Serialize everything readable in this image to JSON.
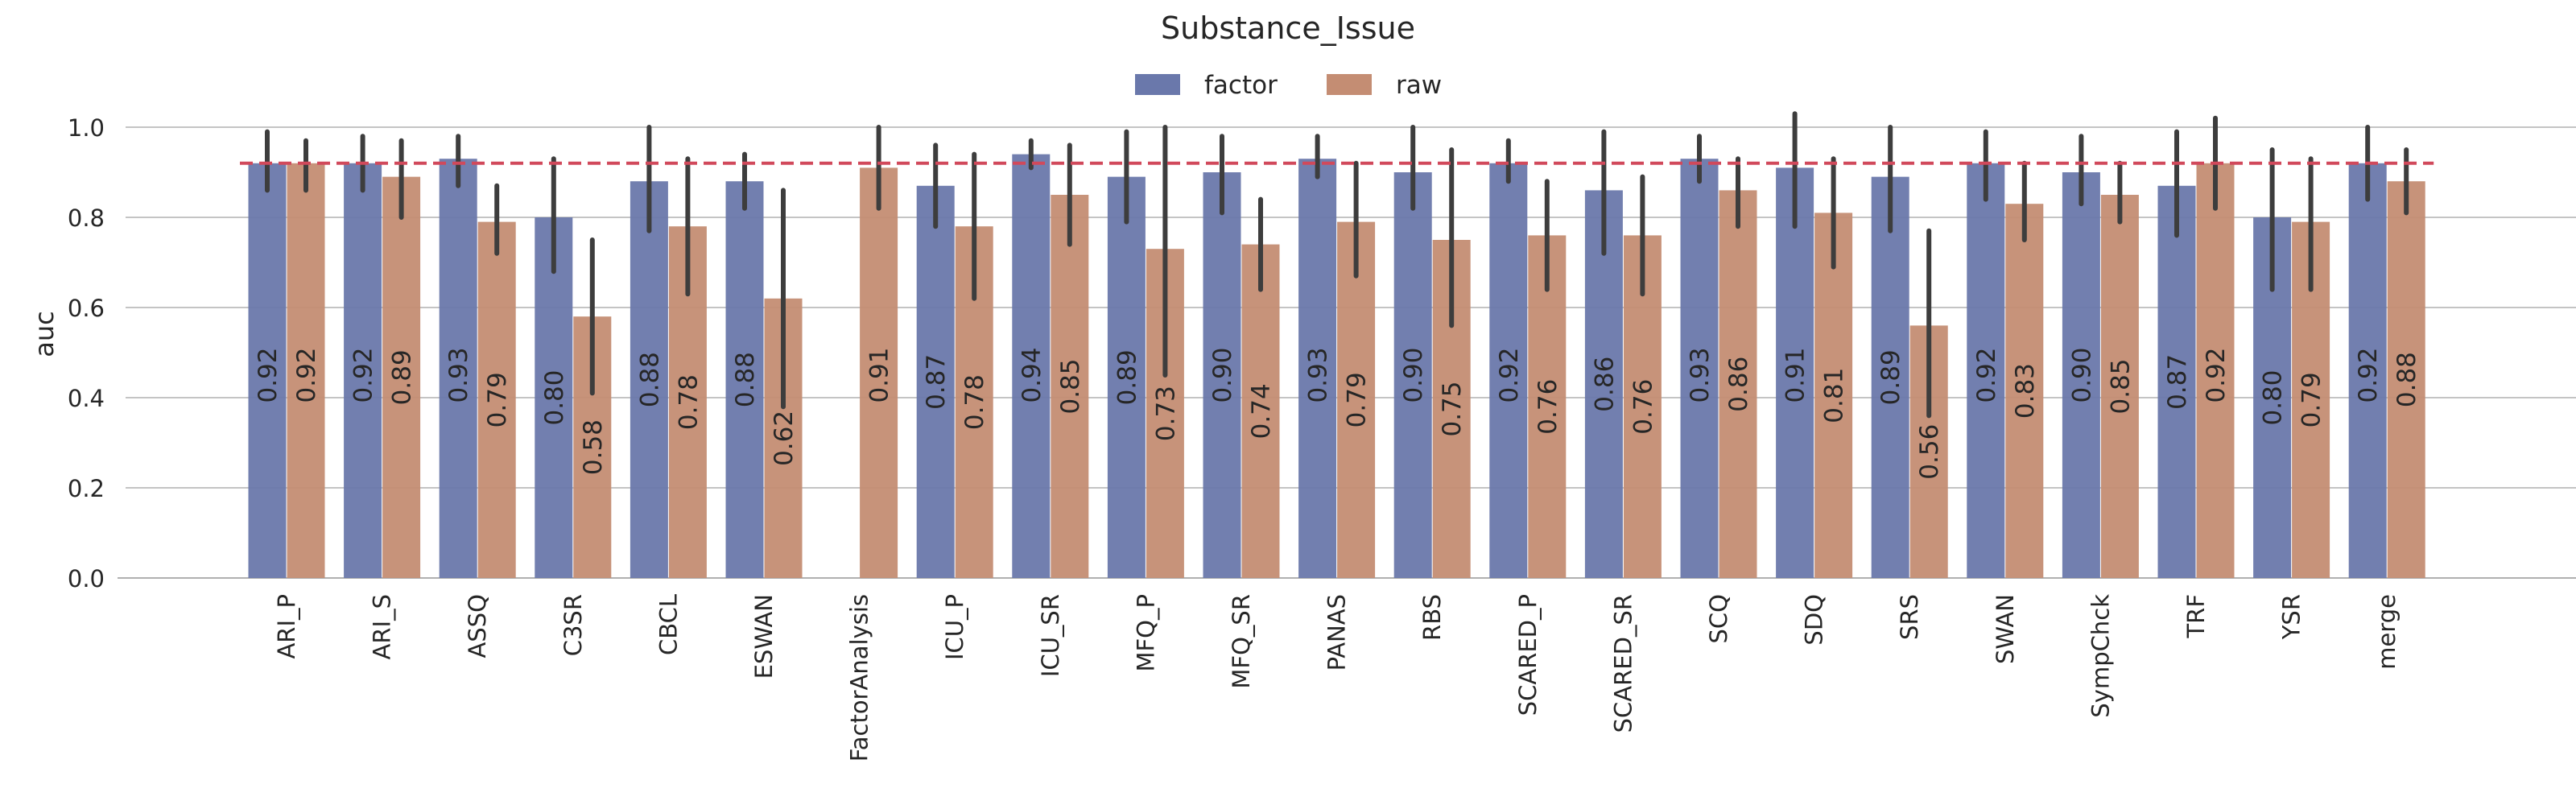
{
  "chart_data": {
    "type": "bar",
    "title": "Substance_Issue",
    "xlabel": "",
    "ylabel": "auc",
    "ylim": [
      0,
      1.1
    ],
    "yticks": [
      0.0,
      0.2,
      0.4,
      0.6,
      0.8,
      1.0
    ],
    "ytick_labels": [
      "0.0",
      "0.2",
      "0.4",
      "0.6",
      "0.8",
      "1.0"
    ],
    "grid": true,
    "legend_position": "top-center",
    "reference_line": {
      "value": 0.92,
      "color": "#d1495b",
      "style": "dashed"
    },
    "categories": [
      "ARI_P",
      "ARI_S",
      "ASSQ",
      "C3SR",
      "CBCL",
      "ESWAN",
      "FactorAnalysis",
      "ICU_P",
      "ICU_SR",
      "MFQ_P",
      "MFQ_SR",
      "PANAS",
      "RBS",
      "SCARED_P",
      "SCARED_SR",
      "SCQ",
      "SDQ",
      "SRS",
      "SWAN",
      "SympChck",
      "TRF",
      "YSR",
      "merge"
    ],
    "series": [
      {
        "name": "factor",
        "color": "#6a78ab",
        "values": [
          0.92,
          0.92,
          0.93,
          0.8,
          0.88,
          0.88,
          null,
          0.87,
          0.94,
          0.89,
          0.9,
          0.93,
          0.9,
          0.92,
          0.86,
          0.93,
          0.91,
          0.89,
          0.92,
          0.9,
          0.87,
          0.8,
          0.92
        ],
        "labels": [
          "0.92",
          "0.92",
          "0.93",
          "0.80",
          "0.88",
          "0.88",
          "",
          "0.87",
          "0.94",
          "0.89",
          "0.90",
          "0.93",
          "0.90",
          "0.92",
          "0.86",
          "0.93",
          "0.91",
          "0.89",
          "0.92",
          "0.90",
          "0.87",
          "0.80",
          "0.92"
        ],
        "ci_low": [
          0.86,
          0.86,
          0.87,
          0.68,
          0.77,
          0.82,
          null,
          0.78,
          0.91,
          0.79,
          0.81,
          0.89,
          0.82,
          0.88,
          0.72,
          0.88,
          0.78,
          0.77,
          0.84,
          0.83,
          0.76,
          0.64,
          0.84
        ],
        "ci_high": [
          0.99,
          0.98,
          0.98,
          0.93,
          1.0,
          0.94,
          null,
          0.96,
          0.97,
          0.99,
          0.98,
          0.98,
          1.0,
          0.97,
          0.99,
          0.98,
          1.03,
          1.0,
          0.99,
          0.98,
          0.99,
          0.95,
          1.0
        ]
      },
      {
        "name": "raw",
        "color": "#c48d73",
        "values": [
          0.92,
          0.89,
          0.79,
          0.58,
          0.78,
          0.62,
          0.91,
          0.78,
          0.85,
          0.73,
          0.74,
          0.79,
          0.75,
          0.76,
          0.76,
          0.86,
          0.81,
          0.56,
          0.83,
          0.85,
          0.92,
          0.79,
          0.88
        ],
        "labels": [
          "0.92",
          "0.89",
          "0.79",
          "0.58",
          "0.78",
          "0.62",
          "0.91",
          "0.78",
          "0.85",
          "0.73",
          "0.74",
          "0.79",
          "0.75",
          "0.76",
          "0.76",
          "0.86",
          "0.81",
          "0.56",
          "0.83",
          "0.85",
          "0.92",
          "0.79",
          "0.88"
        ],
        "ci_low": [
          0.86,
          0.8,
          0.72,
          0.41,
          0.63,
          0.38,
          0.82,
          0.62,
          0.74,
          0.45,
          0.64,
          0.67,
          0.56,
          0.64,
          0.63,
          0.78,
          0.69,
          0.36,
          0.75,
          0.79,
          0.82,
          0.64,
          0.81
        ],
        "ci_high": [
          0.97,
          0.97,
          0.87,
          0.75,
          0.93,
          0.86,
          1.0,
          0.94,
          0.96,
          1.0,
          0.84,
          0.92,
          0.95,
          0.88,
          0.89,
          0.93,
          0.93,
          0.77,
          0.92,
          0.92,
          1.02,
          0.93,
          0.95
        ]
      }
    ]
  }
}
